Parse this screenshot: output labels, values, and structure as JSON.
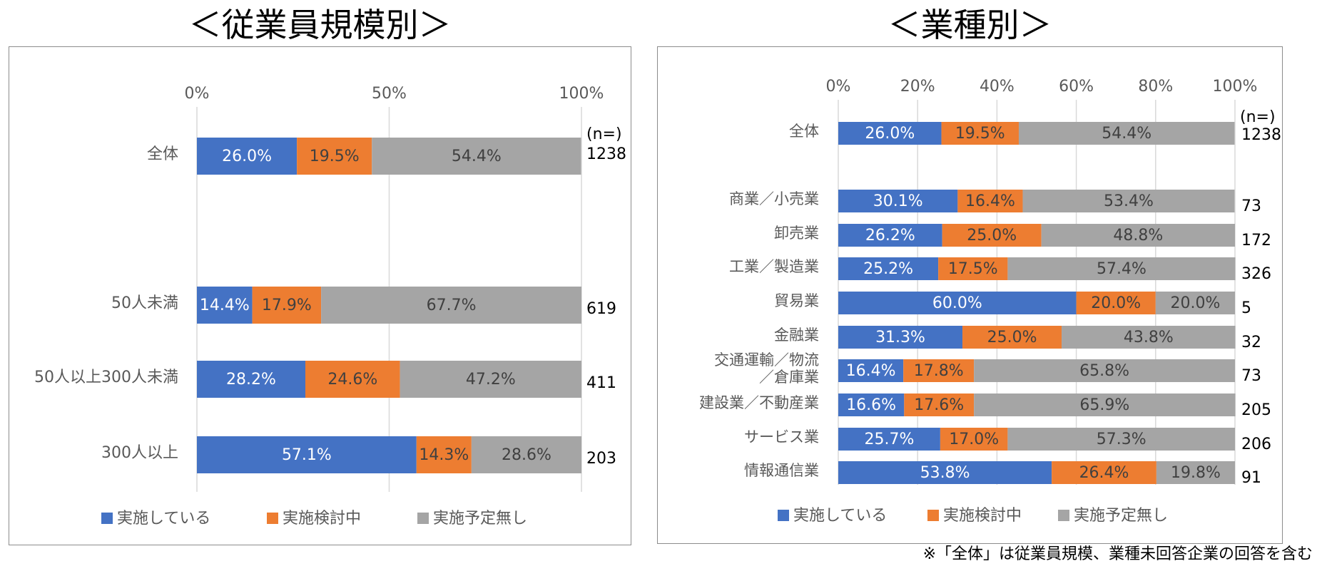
{
  "colors": {
    "impl": "#4472c4",
    "consider": "#ed7d31",
    "none": "#a5a5a5"
  },
  "legend": [
    "実施している",
    "実施検討中",
    "実施予定無し"
  ],
  "n_header": "(n=)",
  "footnote": "※「全体」は従業員規模、業種未回答企業の回答を含む",
  "chart_data": [
    {
      "type": "bar",
      "orientation": "horizontal",
      "stacked": true,
      "title": "＜従業員規模別＞",
      "x_ticks": [
        "0%",
        "50%",
        "100%"
      ],
      "xlim": [
        0,
        100
      ],
      "grid": true,
      "legend_position": "bottom",
      "categories": [
        "全体",
        "50人未満",
        "50人以上300人未満",
        "300人以上"
      ],
      "n": [
        "1238",
        "619",
        "411",
        "203"
      ],
      "series": [
        {
          "name": "実施している",
          "values": [
            26.0,
            14.4,
            28.2,
            57.1
          ]
        },
        {
          "name": "実施検討中",
          "values": [
            19.5,
            17.9,
            24.6,
            14.3
          ]
        },
        {
          "name": "実施予定無し",
          "values": [
            54.4,
            67.7,
            47.2,
            28.6
          ]
        }
      ]
    },
    {
      "type": "bar",
      "orientation": "horizontal",
      "stacked": true,
      "title": "＜業種別＞",
      "x_ticks": [
        "0%",
        "20%",
        "40%",
        "60%",
        "80%",
        "100%"
      ],
      "xlim": [
        0,
        100
      ],
      "grid": true,
      "legend_position": "bottom",
      "categories": [
        "全体",
        "商業／小売業",
        "卸売業",
        "工業／製造業",
        "貿易業",
        "金融業",
        "交通運輸／物流／倉庫業",
        "建設業／不動産業",
        "サービス業",
        "情報通信業"
      ],
      "category_lines": [
        [
          "全体"
        ],
        [
          "商業／小売業"
        ],
        [
          "卸売業"
        ],
        [
          "工業／製造業"
        ],
        [
          "貿易業"
        ],
        [
          "金融業"
        ],
        [
          "交通運輸／物流",
          "／倉庫業"
        ],
        [
          "建設業／不動産業"
        ],
        [
          "サービス業"
        ],
        [
          "情報通信業"
        ]
      ],
      "n": [
        "1238",
        "73",
        "172",
        "326",
        "5",
        "32",
        "73",
        "205",
        "206",
        "91"
      ],
      "series": [
        {
          "name": "実施している",
          "values": [
            26.0,
            30.1,
            26.2,
            25.2,
            60.0,
            31.3,
            16.4,
            16.6,
            25.7,
            53.8
          ]
        },
        {
          "name": "実施検討中",
          "values": [
            19.5,
            16.4,
            25.0,
            17.5,
            20.0,
            25.0,
            17.8,
            17.6,
            17.0,
            26.4
          ]
        },
        {
          "name": "実施予定無し",
          "values": [
            54.4,
            53.4,
            48.8,
            57.4,
            20.0,
            43.8,
            65.8,
            65.9,
            57.3,
            19.8
          ]
        }
      ]
    }
  ]
}
